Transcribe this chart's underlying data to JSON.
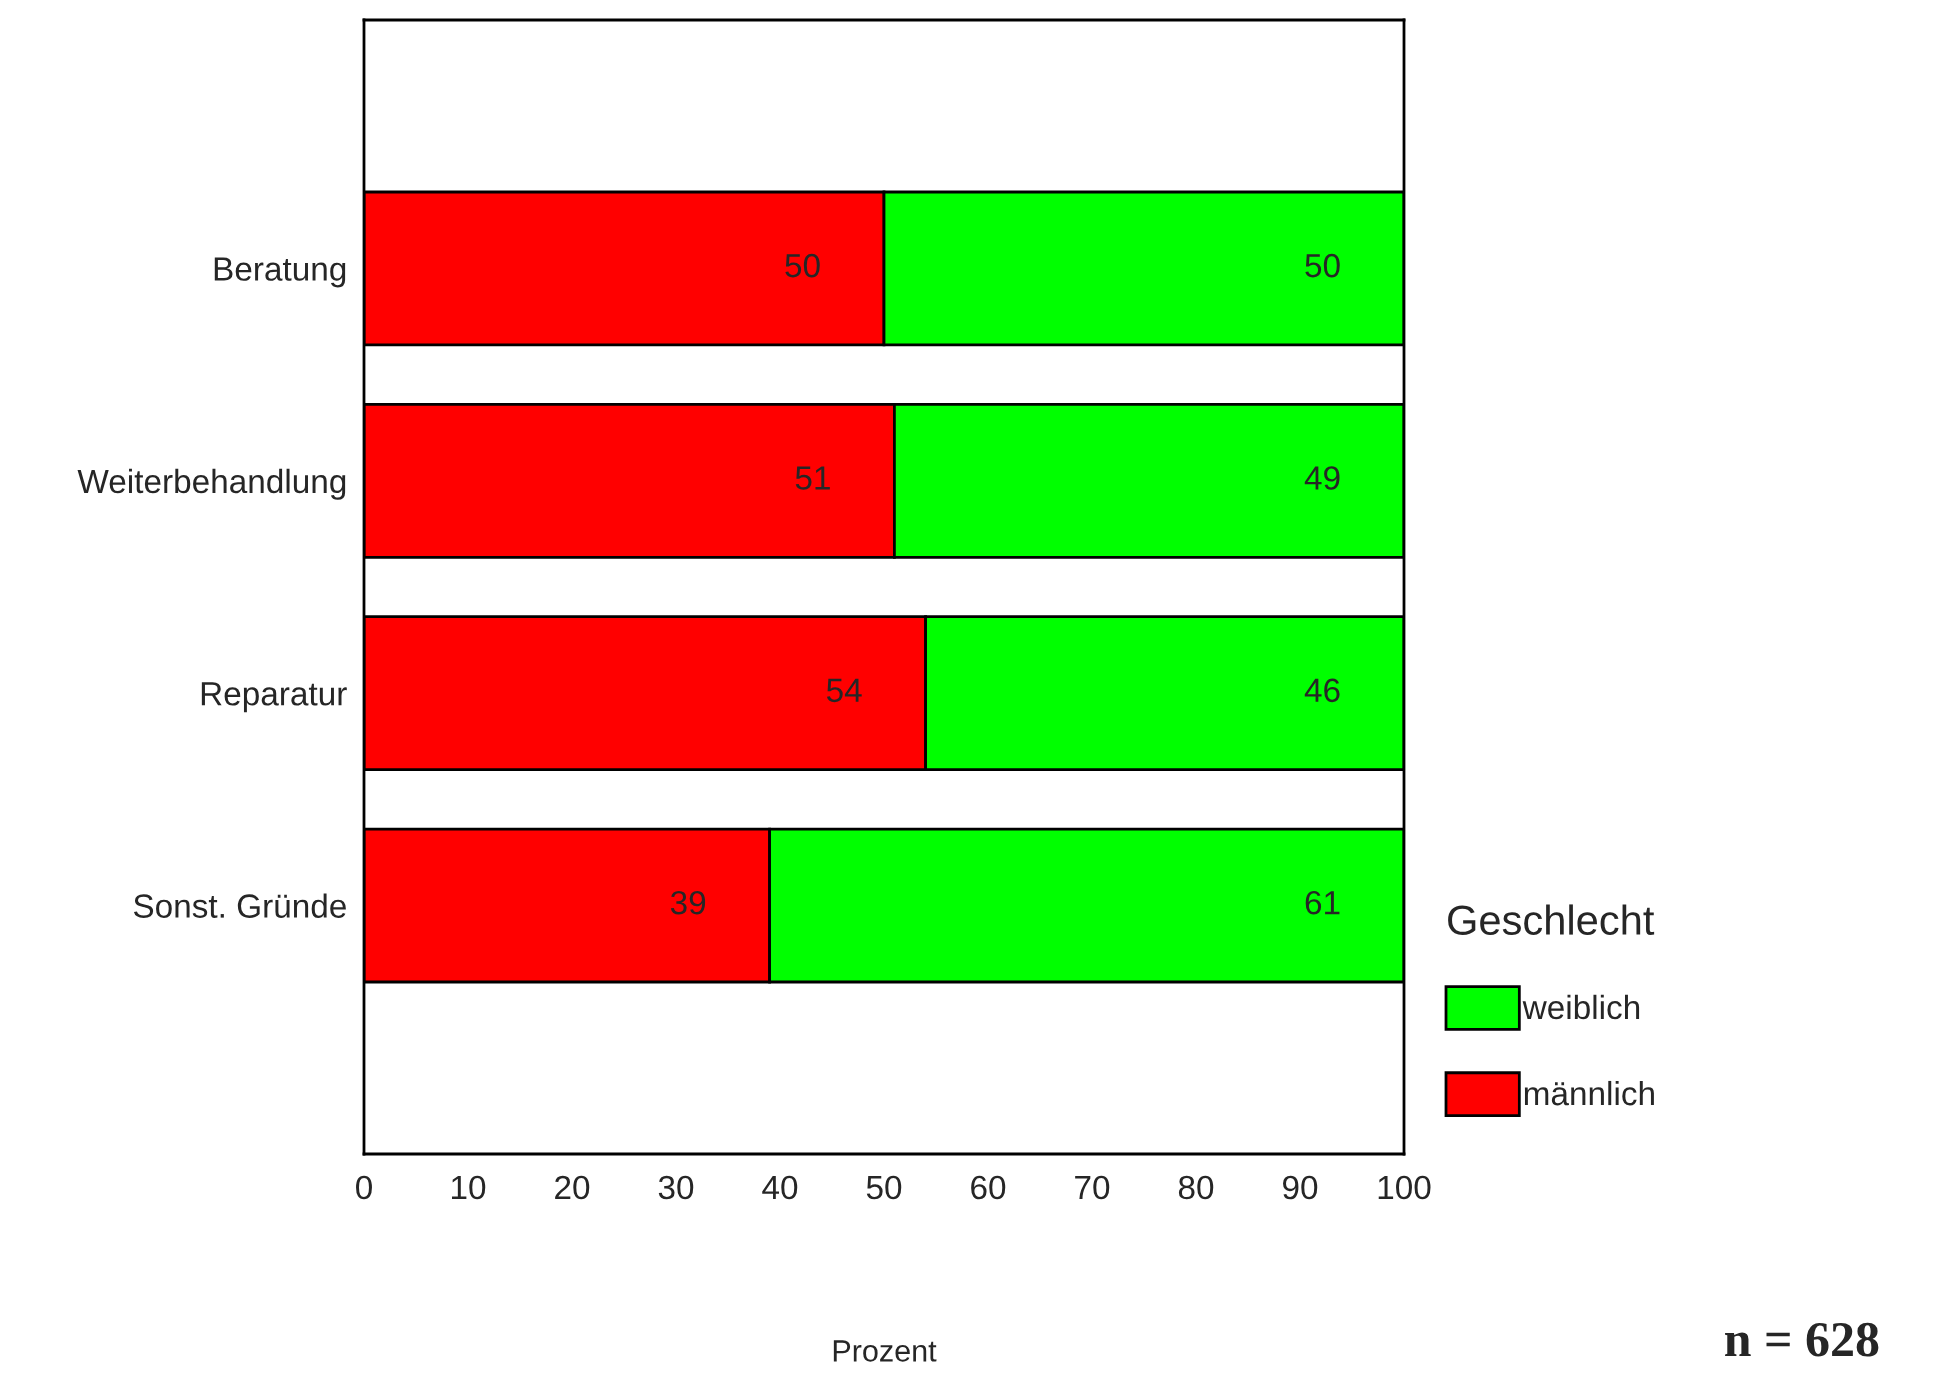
{
  "chart_data": {
    "type": "bar",
    "orientation": "horizontal",
    "stacked": true,
    "categories": [
      "Beratung",
      "Weiterbehandlung",
      "Reparatur",
      "Sonst. Gründe"
    ],
    "series": [
      {
        "name": "männlich",
        "color": "#ff0000",
        "values": [
          50,
          51,
          54,
          39
        ]
      },
      {
        "name": "weiblich",
        "color": "#00ff00",
        "values": [
          50,
          49,
          46,
          61
        ]
      }
    ],
    "xlim": [
      0,
      100
    ],
    "xticks": [
      0,
      10,
      20,
      30,
      40,
      50,
      60,
      70,
      80,
      90,
      100
    ],
    "xlabel": "Prozent",
    "legend_title": "Geschlecht",
    "legend": "right",
    "data_labels": true,
    "annotations": [
      "n = 628"
    ]
  }
}
